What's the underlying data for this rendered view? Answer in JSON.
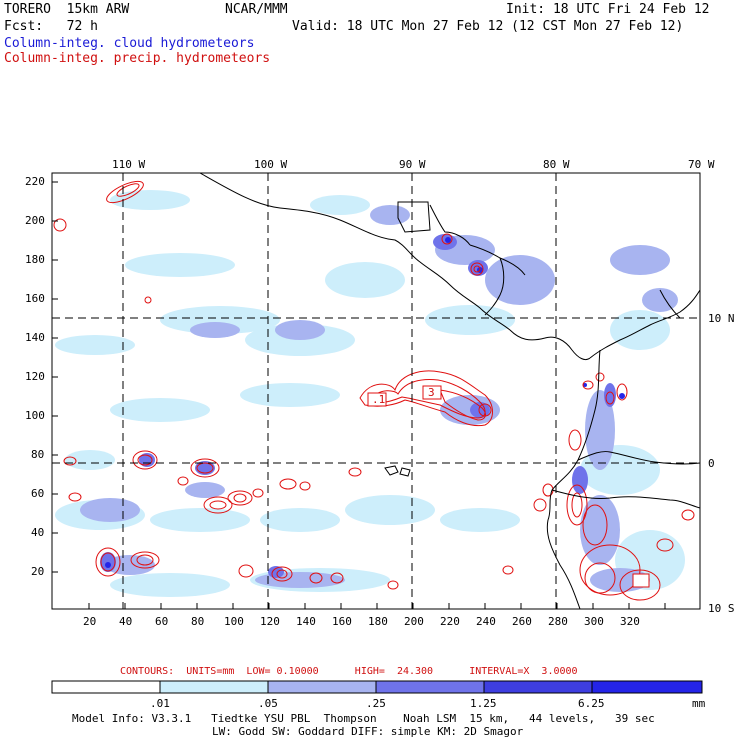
{
  "header": {
    "model": "TORERO  15km ARW",
    "org": "NCAR/MMM",
    "init": "Init: 18 UTC Fri 24 Feb 12",
    "fcst": "Fcst:   72 h",
    "valid": "Valid: 18 UTC Mon 27 Feb 12 (12 CST Mon 27 Feb 12)",
    "legend_cloud": "Column-integ. cloud hydrometeors",
    "legend_precip": "Column-integ. precip. hydrometeors"
  },
  "colors": {
    "cloud_light": "#cdeefb",
    "cloud_mid": "#a8b4f0",
    "cloud_dark": "#6f73ea",
    "cloud_darker": "#3e3ee0",
    "cloud_darkest": "#2424e8",
    "precip": "#e01010"
  },
  "map": {
    "lon_labels": [
      "110 W",
      "100 W",
      "90 W",
      "80 W",
      "70 W"
    ],
    "lat_labels": [
      "10 N",
      "0",
      "10 S"
    ],
    "y_ticks": [
      "220",
      "200",
      "180",
      "160",
      "140",
      "120",
      "100",
      "80",
      "60",
      "40",
      "20"
    ],
    "x_ticks": [
      "20",
      "40",
      "60",
      "80",
      "100",
      "120",
      "140",
      "160",
      "180",
      "200",
      "220",
      "240",
      "260",
      "280",
      "300",
      "320"
    ],
    "box_labels": [
      ".1",
      "3"
    ]
  },
  "contour_info": "CONTOURS:  UNITS=mm  LOW= 0.10000      HIGH=  24.300      INTERVAL=X  3.0000",
  "colorbar": {
    "labels": [
      ".01",
      ".05",
      ".25",
      "1.25",
      "6.25"
    ],
    "units": "mm"
  },
  "footer": {
    "line1": "Model Info: V3.3.1   Tiedtke YSU PBL  Thompson    Noah LSM  15 km,   44 levels,   39 sec",
    "line2": "LW: Godd SW: Goddard DIFF: simple KM: 2D Smagor"
  }
}
